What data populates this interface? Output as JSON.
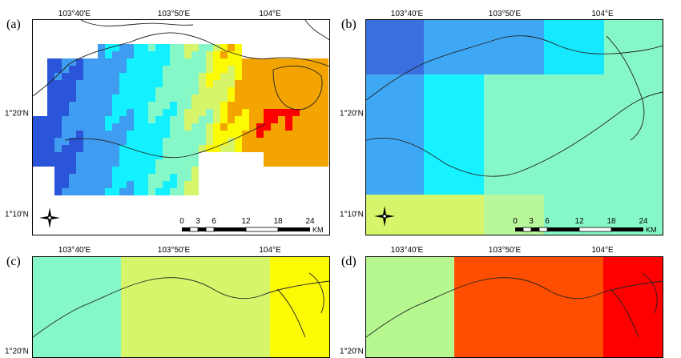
{
  "panels": [
    {
      "label": "(a)"
    },
    {
      "label": "(b)"
    },
    {
      "label": "(c)"
    },
    {
      "label": "(d)"
    }
  ],
  "axes": {
    "lon_ticks": [
      "103°40'E",
      "103°50'E",
      "104°E"
    ],
    "lat_ticks": [
      "1°20'N",
      "1°10'N"
    ]
  },
  "scalebar": {
    "ticks": [
      "0",
      "3",
      "6",
      "12",
      "18",
      "24"
    ],
    "unit": "KM"
  },
  "colors": {
    "deep_blue": "#2a55d8",
    "blue": "#3f9cf0",
    "cyan": "#13f0ff",
    "aqua": "#86f8c8",
    "yellow_green": "#d6f56a",
    "yellow": "#fdfa05",
    "orange": "#f4a400",
    "red_orange": "#ff4e00",
    "red": "#ff0000",
    "light_green": "#b6f78f",
    "outline": "#222222"
  },
  "icons": {
    "north_arrow": "north-arrow-icon"
  }
}
